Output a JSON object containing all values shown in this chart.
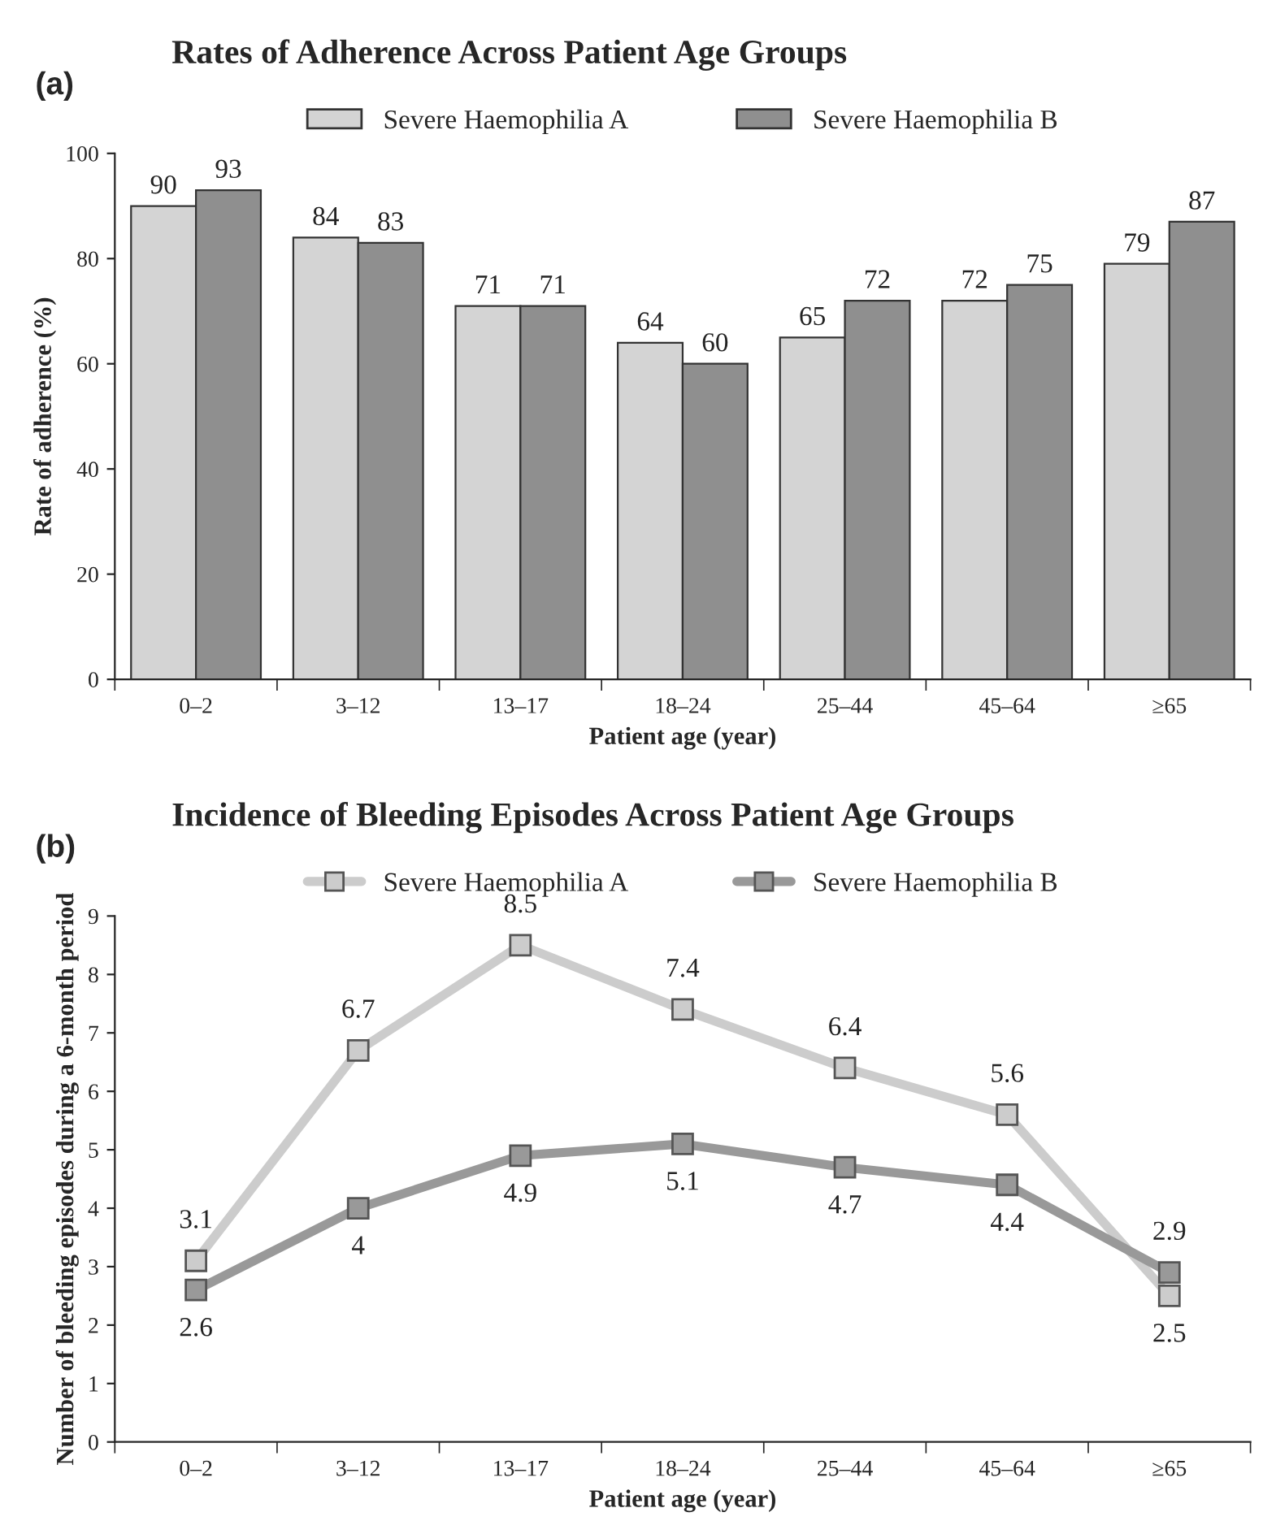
{
  "chart_data": [
    {
      "type": "bar",
      "title": "Rates of Adherence Across Patient Age Groups",
      "xlabel": "Patient age (year)",
      "ylabel": "Rate of adherence (%)",
      "annotations": [
        "(a)"
      ],
      "categories": [
        "0–2",
        "3–12",
        "13–17",
        "18–24",
        "25–44",
        "45–64",
        "≥65"
      ],
      "series": [
        {
          "name": "Severe Haemophilia A",
          "color": "#d4d4d4",
          "values": [
            90,
            84,
            71,
            64,
            65,
            72,
            79
          ]
        },
        {
          "name": "Severe Haemophilia B",
          "color": "#8f8f8f",
          "values": [
            93,
            83,
            71,
            60,
            72,
            75,
            87
          ]
        }
      ],
      "ylim": [
        0,
        100
      ],
      "yticks": [
        0,
        20,
        40,
        60,
        80,
        100
      ],
      "data_labels": true,
      "legend": "top",
      "grid": false
    },
    {
      "type": "line",
      "title": "Incidence of Bleeding Episodes Across Patient Age Groups",
      "xlabel": "Patient age (year)",
      "ylabel": "Number of bleeding episodes during a 6-month period",
      "annotations": [
        "(b)"
      ],
      "categories": [
        "0–2",
        "3–12",
        "13–17",
        "18–24",
        "25–44",
        "45–64",
        "≥65"
      ],
      "series": [
        {
          "name": "Severe Haemophilia A",
          "color": "#cccccc",
          "values": [
            3.1,
            6.7,
            8.5,
            7.4,
            6.4,
            5.6,
            2.5
          ]
        },
        {
          "name": "Severe Haemophilia B",
          "color": "#999999",
          "values": [
            2.6,
            4,
            4.9,
            5.1,
            4.7,
            4.4,
            2.9
          ]
        }
      ],
      "ylim": [
        0,
        9
      ],
      "yticks": [
        0,
        1,
        2,
        3,
        4,
        5,
        6,
        7,
        8,
        9
      ],
      "data_labels": true,
      "legend": "top",
      "grid": false,
      "marker": "square",
      "line_style": "solid"
    }
  ]
}
